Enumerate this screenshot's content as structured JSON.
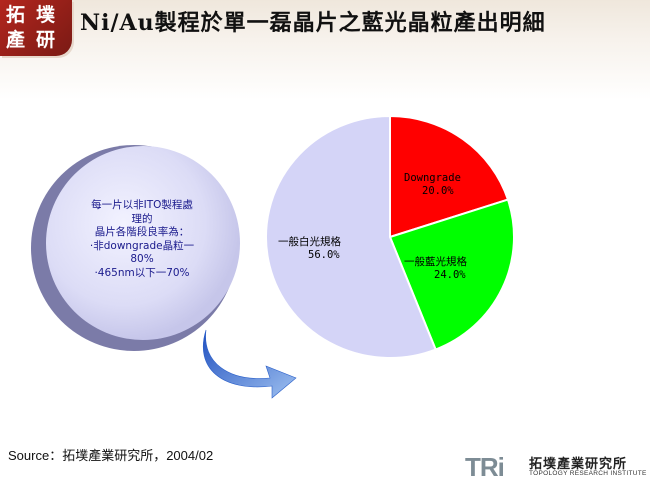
{
  "slide": {
    "title": "Ni/Au製程於單一磊晶片之藍光晶粒產出明細",
    "logo_chars": [
      "拓",
      "墣",
      "產",
      "研"
    ],
    "source": "Source：拓墣產業研究所，2004/02",
    "footer_logo": {
      "mark": "TRi",
      "cn": "拓墣產業研究所",
      "en": "TOPOLOGY RESEARCH INSTITUTE"
    }
  },
  "callout": {
    "lines": [
      "每一片以非ITO製程處",
      "理的",
      "晶片各階段良率為：",
      "‧非downgrade晶粒一",
      "80%",
      "‧465nm以下一70%"
    ]
  },
  "chart_data": {
    "type": "pie",
    "title": "",
    "slices": [
      {
        "label": "Downgrade",
        "value": 20.0,
        "value_label": "20.0%",
        "color": "#ff0000"
      },
      {
        "label": "一般藍光規格",
        "value": 24.0,
        "value_label": "24.0%",
        "color": "#00ff00"
      },
      {
        "label": "一般白光規格",
        "value": 56.0,
        "value_label": "56.0%",
        "color": "#d4d4f7"
      }
    ],
    "start": "12 o'clock",
    "direction": "clockwise",
    "labels_inside": true
  }
}
